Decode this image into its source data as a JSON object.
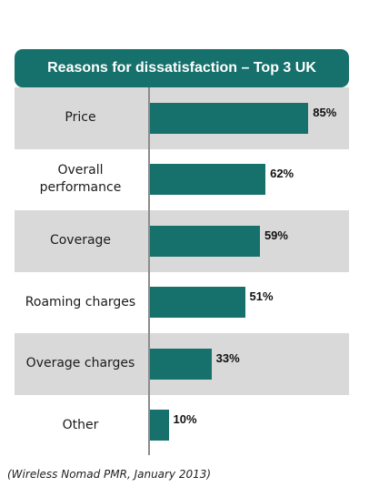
{
  "chart_data": {
    "type": "bar",
    "orientation": "horizontal",
    "title": "Reasons for dissatisfaction – Top 3 UK",
    "categories": [
      "Price",
      "Overall\nperformance",
      "Coverage",
      "Roaming charges",
      "Overage charges",
      "Other"
    ],
    "values": [
      85,
      62,
      59,
      51,
      33,
      10
    ],
    "value_labels": [
      "85%",
      "62%",
      "59%",
      "51%",
      "33%",
      "10%"
    ],
    "unit": "%",
    "xlim": [
      0,
      100
    ],
    "grid": false,
    "legend": "none",
    "bar_color": "#16706b",
    "band_color": "#d9d9d9"
  },
  "source_note": "(Wireless Nomad PMR, January 2013)"
}
